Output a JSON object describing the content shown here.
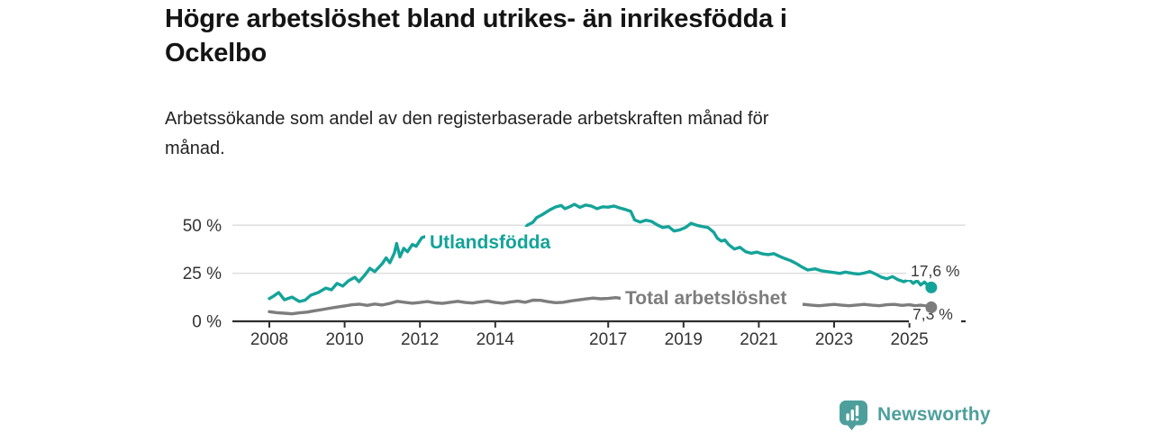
{
  "header": {
    "title": "Högre arbetslöshet bland utrikes- än inrikesfödda i\nOckelbo",
    "subtitle": "Arbetssökande som andel av den registerbaserade arbetskraften månad för\nmånad."
  },
  "footer": {
    "brand": "Newsworthy",
    "logo_icon": "bar-chart-speech-bubble-icon",
    "brand_color": "#4d9f9c"
  },
  "colors": {
    "background": "#ffffff",
    "accent_teal": "#14a399",
    "line_gray": "#7d7d7d",
    "axis": "#2f2f2f",
    "gridline": "#dedede",
    "tick_label": "#333333",
    "end_label": "#3a3a3a"
  },
  "chart_data": {
    "type": "line",
    "title": "Högre arbetslöshet bland utrikes- än inrikesfödda i Ockelbo",
    "subtitle": "Arbetssökande som andel av den registerbaserade arbetskraften månad för månad.",
    "xlabel": "",
    "ylabel": "",
    "grid": "horizontal",
    "xlim": [
      2006.9,
      2026.5
    ],
    "ylim": [
      0,
      64
    ],
    "x_ticks": [
      2008,
      2010,
      2012,
      2014,
      2017,
      2019,
      2021,
      2023,
      2025
    ],
    "x_tick_labels": [
      "2008",
      "2010",
      "2012",
      "2014",
      "2017",
      "2019",
      "2021",
      "2023",
      "2025"
    ],
    "y_ticks": [
      0,
      25,
      50
    ],
    "y_tick_labels": [
      "0 %",
      "25 %",
      "50 %"
    ],
    "series": [
      {
        "name": "Utlandsfödda",
        "color": "#14a399",
        "end_value": 17.6,
        "end_label": "17,6 %",
        "points": [
          [
            2008.0,
            11.8
          ],
          [
            2008.12,
            13.2
          ],
          [
            2008.25,
            15.0
          ],
          [
            2008.4,
            11.2
          ],
          [
            2008.6,
            12.6
          ],
          [
            2008.8,
            10.3
          ],
          [
            2008.95,
            11.0
          ],
          [
            2009.1,
            13.6
          ],
          [
            2009.3,
            15.0
          ],
          [
            2009.5,
            17.3
          ],
          [
            2009.65,
            16.4
          ],
          [
            2009.8,
            19.7
          ],
          [
            2009.95,
            18.3
          ],
          [
            2010.1,
            21.1
          ],
          [
            2010.27,
            22.9
          ],
          [
            2010.38,
            20.6
          ],
          [
            2010.55,
            24.4
          ],
          [
            2010.67,
            27.6
          ],
          [
            2010.8,
            25.8
          ],
          [
            2011.0,
            30.0
          ],
          [
            2011.1,
            33.0
          ],
          [
            2011.2,
            30.5
          ],
          [
            2011.32,
            35.5
          ],
          [
            2011.38,
            40.5
          ],
          [
            2011.47,
            33.5
          ],
          [
            2011.57,
            38.0
          ],
          [
            2011.67,
            36.2
          ],
          [
            2011.8,
            40.0
          ],
          [
            2011.9,
            39.0
          ],
          [
            2012.05,
            43.5
          ],
          [
            2012.2,
            44.5
          ],
          [
            2012.35,
            42.5
          ],
          [
            2012.5,
            44.8
          ],
          [
            2012.65,
            43.2
          ],
          [
            2012.8,
            44.2
          ],
          [
            2012.95,
            45.2
          ],
          [
            2013.1,
            43.8
          ],
          [
            2013.25,
            45.3
          ],
          [
            2013.4,
            44.0
          ],
          [
            2013.55,
            42.0
          ],
          [
            2013.7,
            44.3
          ],
          [
            2013.85,
            43.2
          ],
          [
            2014.0,
            44.6
          ],
          [
            2014.15,
            43.6
          ],
          [
            2014.3,
            44.8
          ],
          [
            2014.45,
            43.0
          ],
          [
            2014.6,
            44.0
          ],
          [
            2014.75,
            47.0
          ],
          [
            2014.85,
            50.0
          ],
          [
            2015.0,
            51.5
          ],
          [
            2015.1,
            54.0
          ],
          [
            2015.25,
            55.5
          ],
          [
            2015.45,
            58.0
          ],
          [
            2015.6,
            59.5
          ],
          [
            2015.75,
            60.3
          ],
          [
            2015.85,
            58.6
          ],
          [
            2016.0,
            59.8
          ],
          [
            2016.1,
            60.9
          ],
          [
            2016.25,
            59.3
          ],
          [
            2016.4,
            60.5
          ],
          [
            2016.55,
            60.0
          ],
          [
            2016.7,
            58.6
          ],
          [
            2016.85,
            59.6
          ],
          [
            2017.0,
            59.4
          ],
          [
            2017.15,
            60.0
          ],
          [
            2017.3,
            59.0
          ],
          [
            2017.45,
            58.2
          ],
          [
            2017.6,
            57.2
          ],
          [
            2017.7,
            52.8
          ],
          [
            2017.85,
            51.6
          ],
          [
            2018.0,
            52.6
          ],
          [
            2018.15,
            52.0
          ],
          [
            2018.3,
            50.2
          ],
          [
            2018.45,
            48.8
          ],
          [
            2018.6,
            49.3
          ],
          [
            2018.75,
            47.0
          ],
          [
            2018.9,
            47.6
          ],
          [
            2019.05,
            48.8
          ],
          [
            2019.2,
            51.0
          ],
          [
            2019.35,
            50.0
          ],
          [
            2019.5,
            49.3
          ],
          [
            2019.65,
            48.8
          ],
          [
            2019.8,
            46.4
          ],
          [
            2019.9,
            43.2
          ],
          [
            2020.0,
            41.8
          ],
          [
            2020.1,
            42.3
          ],
          [
            2020.2,
            39.9
          ],
          [
            2020.35,
            37.6
          ],
          [
            2020.5,
            38.5
          ],
          [
            2020.65,
            36.2
          ],
          [
            2020.8,
            35.4
          ],
          [
            2020.95,
            36.0
          ],
          [
            2021.1,
            35.1
          ],
          [
            2021.25,
            34.7
          ],
          [
            2021.4,
            35.2
          ],
          [
            2021.55,
            33.8
          ],
          [
            2021.7,
            32.6
          ],
          [
            2021.85,
            31.5
          ],
          [
            2022.0,
            30.0
          ],
          [
            2022.15,
            28.2
          ],
          [
            2022.3,
            26.7
          ],
          [
            2022.5,
            27.3
          ],
          [
            2022.65,
            26.3
          ],
          [
            2022.8,
            25.9
          ],
          [
            2023.0,
            25.4
          ],
          [
            2023.15,
            24.9
          ],
          [
            2023.3,
            25.6
          ],
          [
            2023.5,
            24.9
          ],
          [
            2023.65,
            24.6
          ],
          [
            2023.8,
            25.1
          ],
          [
            2023.95,
            25.9
          ],
          [
            2024.1,
            24.6
          ],
          [
            2024.25,
            23.0
          ],
          [
            2024.4,
            22.1
          ],
          [
            2024.55,
            23.3
          ],
          [
            2024.7,
            21.6
          ],
          [
            2024.85,
            20.6
          ],
          [
            2025.0,
            21.7
          ],
          [
            2025.1,
            19.7
          ],
          [
            2025.2,
            21.2
          ],
          [
            2025.3,
            18.9
          ],
          [
            2025.4,
            20.4
          ],
          [
            2025.5,
            18.5
          ],
          [
            2025.58,
            17.6
          ]
        ]
      },
      {
        "name": "Total arbetslöshet",
        "color": "#7d7d7d",
        "end_value": 7.3,
        "end_label": "7,3 %",
        "points": [
          [
            2008.0,
            5.0
          ],
          [
            2008.2,
            4.5
          ],
          [
            2008.4,
            4.2
          ],
          [
            2008.6,
            3.9
          ],
          [
            2008.8,
            4.4
          ],
          [
            2009.0,
            4.8
          ],
          [
            2009.2,
            5.5
          ],
          [
            2009.4,
            6.1
          ],
          [
            2009.6,
            6.8
          ],
          [
            2009.8,
            7.4
          ],
          [
            2010.0,
            8.0
          ],
          [
            2010.2,
            8.6
          ],
          [
            2010.4,
            8.9
          ],
          [
            2010.6,
            8.3
          ],
          [
            2010.8,
            9.0
          ],
          [
            2011.0,
            8.5
          ],
          [
            2011.2,
            9.3
          ],
          [
            2011.4,
            10.4
          ],
          [
            2011.6,
            9.9
          ],
          [
            2011.8,
            9.4
          ],
          [
            2012.0,
            9.8
          ],
          [
            2012.2,
            10.3
          ],
          [
            2012.4,
            9.6
          ],
          [
            2012.6,
            9.3
          ],
          [
            2012.8,
            9.9
          ],
          [
            2013.0,
            10.4
          ],
          [
            2013.2,
            9.8
          ],
          [
            2013.4,
            9.5
          ],
          [
            2013.6,
            10.1
          ],
          [
            2013.8,
            10.6
          ],
          [
            2014.0,
            9.8
          ],
          [
            2014.2,
            9.4
          ],
          [
            2014.4,
            10.0
          ],
          [
            2014.6,
            10.5
          ],
          [
            2014.8,
            9.9
          ],
          [
            2015.0,
            11.0
          ],
          [
            2015.2,
            10.9
          ],
          [
            2015.4,
            10.2
          ],
          [
            2015.6,
            9.7
          ],
          [
            2015.8,
            9.9
          ],
          [
            2016.0,
            10.6
          ],
          [
            2016.2,
            11.1
          ],
          [
            2016.4,
            11.6
          ],
          [
            2016.6,
            12.1
          ],
          [
            2016.8,
            11.7
          ],
          [
            2017.0,
            11.9
          ],
          [
            2017.2,
            12.3
          ],
          [
            2017.4,
            11.8
          ],
          [
            2017.6,
            12.1
          ],
          [
            2017.8,
            11.6
          ],
          [
            2018.0,
            11.3
          ],
          [
            2018.2,
            11.5
          ],
          [
            2018.4,
            11.0
          ],
          [
            2018.6,
            10.7
          ],
          [
            2018.8,
            11.1
          ],
          [
            2019.0,
            10.8
          ],
          [
            2019.2,
            10.4
          ],
          [
            2019.4,
            10.9
          ],
          [
            2019.6,
            11.2
          ],
          [
            2019.8,
            10.7
          ],
          [
            2020.0,
            11.0
          ],
          [
            2020.2,
            11.4
          ],
          [
            2020.4,
            11.1
          ],
          [
            2020.6,
            10.6
          ],
          [
            2020.8,
            10.1
          ],
          [
            2021.0,
            9.6
          ],
          [
            2021.2,
            9.1
          ],
          [
            2021.4,
            8.7
          ],
          [
            2021.6,
            8.4
          ],
          [
            2021.8,
            8.1
          ],
          [
            2022.0,
            8.5
          ],
          [
            2022.2,
            8.8
          ],
          [
            2022.4,
            8.4
          ],
          [
            2022.6,
            8.1
          ],
          [
            2022.8,
            8.5
          ],
          [
            2023.0,
            8.8
          ],
          [
            2023.2,
            8.4
          ],
          [
            2023.4,
            8.1
          ],
          [
            2023.6,
            8.5
          ],
          [
            2023.8,
            8.8
          ],
          [
            2024.0,
            8.4
          ],
          [
            2024.2,
            8.1
          ],
          [
            2024.4,
            8.6
          ],
          [
            2024.6,
            8.8
          ],
          [
            2024.8,
            8.3
          ],
          [
            2025.0,
            8.6
          ],
          [
            2025.15,
            8.1
          ],
          [
            2025.3,
            8.4
          ],
          [
            2025.45,
            7.9
          ],
          [
            2025.58,
            7.3
          ]
        ]
      }
    ],
    "legend_position": "inline-labels"
  }
}
